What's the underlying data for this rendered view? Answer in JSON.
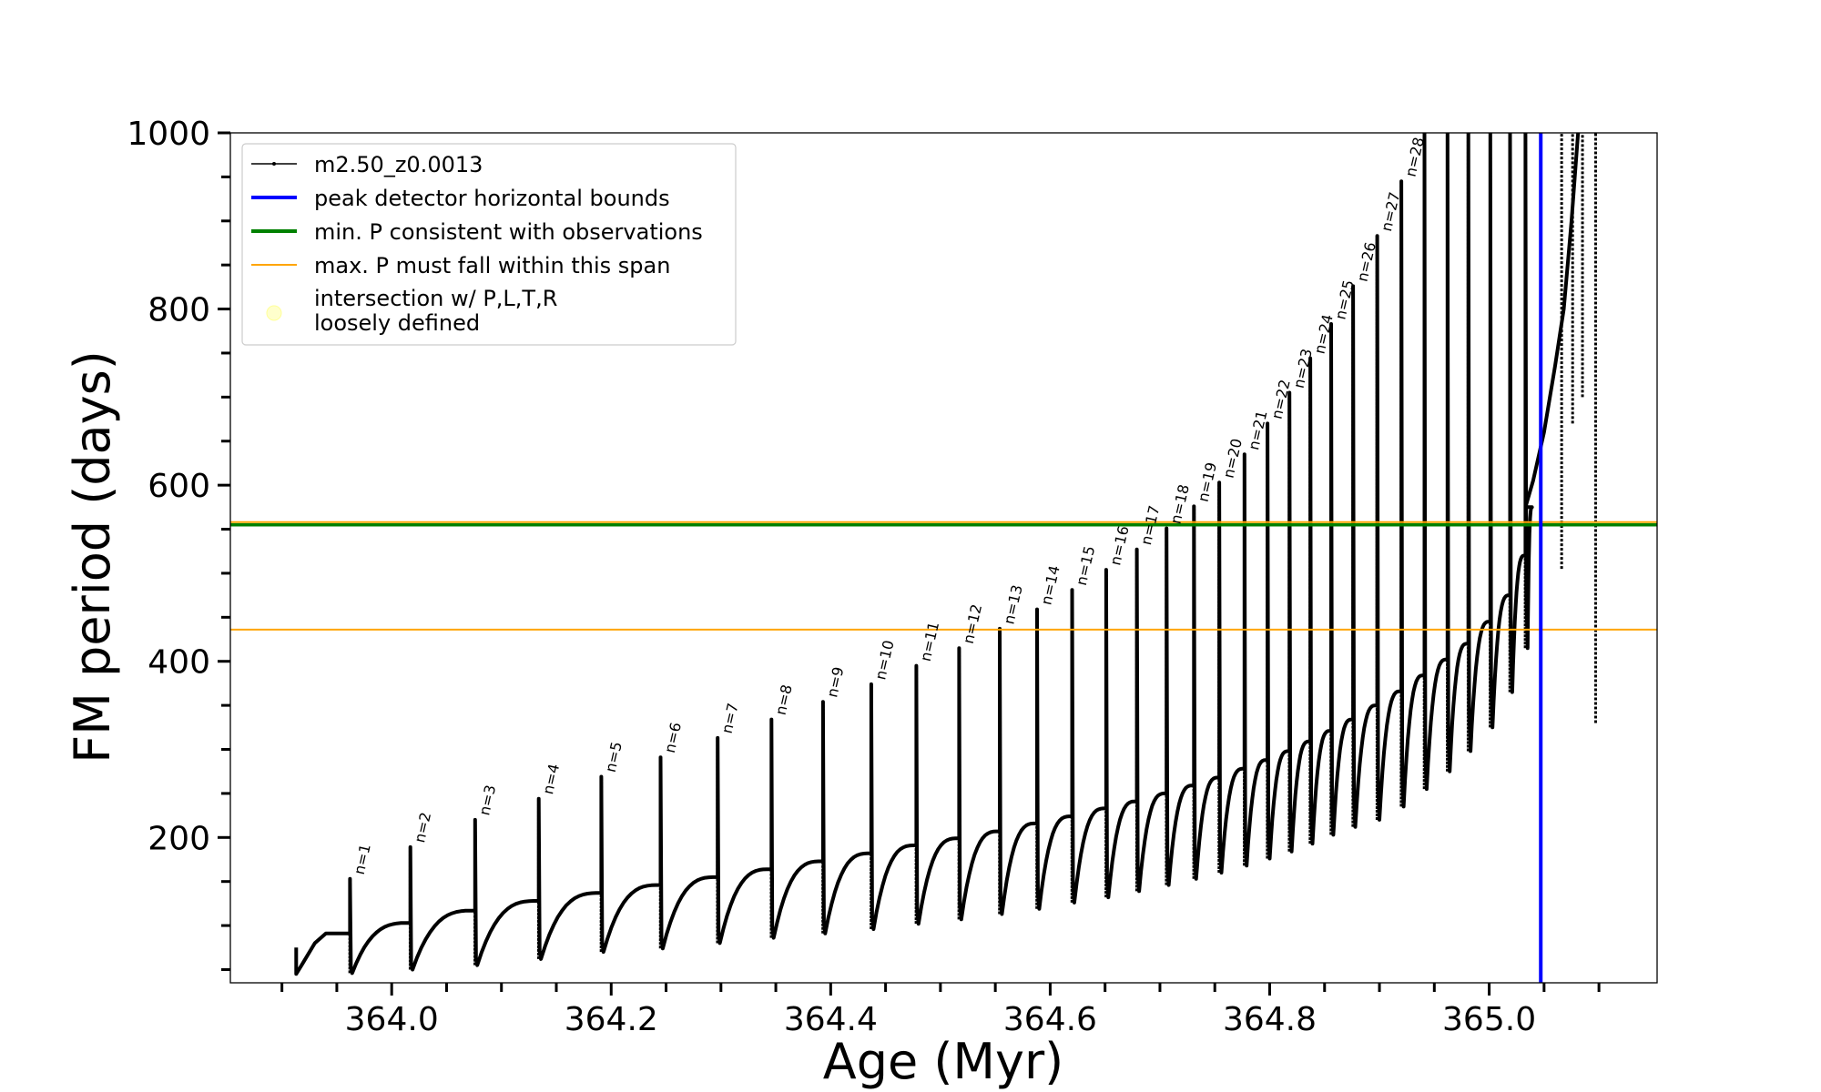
{
  "chart_data": {
    "type": "line",
    "title": "",
    "xlabel": "Age (Myr)",
    "ylabel": "FM period (days)",
    "xlim": [
      363.853,
      365.153
    ],
    "ylim": [
      35,
      1000
    ],
    "xticks": [
      364.0,
      364.2,
      364.4,
      364.6,
      364.8,
      365.0
    ],
    "xtick_labels": [
      "364.0",
      "364.2",
      "364.4",
      "364.6",
      "364.8",
      "365.0"
    ],
    "yticks": [
      200,
      400,
      600,
      800,
      1000
    ],
    "ytick_labels": [
      "200",
      "400",
      "600",
      "800",
      "1000"
    ],
    "grid": false,
    "legend_position": "top-left",
    "legend": [
      {
        "label": "m2.50_z0.0013",
        "color": "#000000",
        "style": "line-marker"
      },
      {
        "label": "peak detector horizontal bounds",
        "color": "#0000ff",
        "style": "line"
      },
      {
        "label": "min. P consistent with observations",
        "color": "#008000",
        "style": "line"
      },
      {
        "label": "max. P must fall within this span",
        "color": "#ffa500",
        "style": "line"
      },
      {
        "label": "intersection w/ P,L,T,R\nloosely defined",
        "color": "#ffffcc",
        "style": "marker"
      }
    ],
    "reference_lines": {
      "peak_detector_x": 365.047,
      "min_period": 555,
      "max_period_span": [
        436,
        558
      ]
    },
    "series": [
      {
        "name": "m2.50_z0.0013",
        "color": "#000000",
        "pulses": [
          {
            "n": "n=1",
            "age": 363.962,
            "peak": 153,
            "min": 46,
            "pre": 91
          },
          {
            "n": "n=2",
            "age": 364.017,
            "peak": 189,
            "min": 50,
            "pre": 103
          },
          {
            "n": "n=3",
            "age": 364.076,
            "peak": 220,
            "min": 55,
            "pre": 117
          },
          {
            "n": "n=4",
            "age": 364.134,
            "peak": 244,
            "min": 62,
            "pre": 128
          },
          {
            "n": "n=5",
            "age": 364.191,
            "peak": 269,
            "min": 70,
            "pre": 137
          },
          {
            "n": "n=6",
            "age": 364.245,
            "peak": 291,
            "min": 74,
            "pre": 146
          },
          {
            "n": "n=7",
            "age": 364.297,
            "peak": 313,
            "min": 80,
            "pre": 155
          },
          {
            "n": "n=8",
            "age": 364.346,
            "peak": 334,
            "min": 86,
            "pre": 164
          },
          {
            "n": "n=9",
            "age": 364.393,
            "peak": 354,
            "min": 91,
            "pre": 173
          },
          {
            "n": "n=10",
            "age": 364.437,
            "peak": 374,
            "min": 96,
            "pre": 182
          },
          {
            "n": "n=11",
            "age": 364.478,
            "peak": 395,
            "min": 102,
            "pre": 191
          },
          {
            "n": "n=12",
            "age": 364.517,
            "peak": 415,
            "min": 107,
            "pre": 199
          },
          {
            "n": "n=13",
            "age": 364.554,
            "peak": 437,
            "min": 113,
            "pre": 207
          },
          {
            "n": "n=14",
            "age": 364.588,
            "peak": 459,
            "min": 119,
            "pre": 216
          },
          {
            "n": "n=15",
            "age": 364.62,
            "peak": 481,
            "min": 126,
            "pre": 224
          },
          {
            "n": "n=16",
            "age": 364.651,
            "peak": 504,
            "min": 132,
            "pre": 233
          },
          {
            "n": "n=17",
            "age": 364.679,
            "peak": 527,
            "min": 139,
            "pre": 241
          },
          {
            "n": "n=18",
            "age": 364.706,
            "peak": 551,
            "min": 146,
            "pre": 250
          },
          {
            "n": "n=19",
            "age": 364.731,
            "peak": 576,
            "min": 153,
            "pre": 259
          },
          {
            "n": "n=20",
            "age": 364.754,
            "peak": 603,
            "min": 160,
            "pre": 268
          },
          {
            "n": "n=21",
            "age": 364.777,
            "peak": 635,
            "min": 168,
            "pre": 278
          },
          {
            "n": "n=22",
            "age": 364.798,
            "peak": 670,
            "min": 176,
            "pre": 288
          },
          {
            "n": "n=23",
            "age": 364.818,
            "peak": 705,
            "min": 184,
            "pre": 298
          },
          {
            "n": "n=24",
            "age": 364.837,
            "peak": 744,
            "min": 193,
            "pre": 309
          },
          {
            "n": "n=25",
            "age": 364.856,
            "peak": 783,
            "min": 203,
            "pre": 321
          },
          {
            "n": "n=26",
            "age": 364.876,
            "peak": 826,
            "min": 212,
            "pre": 334
          },
          {
            "n": "n=27",
            "age": 364.898,
            "peak": 883,
            "min": 220,
            "pre": 350
          },
          {
            "n": "n=28",
            "age": 364.92,
            "peak": 945,
            "min": 235,
            "pre": 366
          },
          {
            "n": "",
            "age": 364.941,
            "peak": 1000,
            "min": 255,
            "pre": 384
          },
          {
            "n": "",
            "age": 364.962,
            "peak": 1000,
            "min": 275,
            "pre": 402
          },
          {
            "n": "",
            "age": 364.981,
            "peak": 1000,
            "min": 298,
            "pre": 420
          },
          {
            "n": "",
            "age": 365.001,
            "peak": 1000,
            "min": 325,
            "pre": 445
          },
          {
            "n": "",
            "age": 365.019,
            "peak": 1000,
            "min": 365,
            "pre": 475
          },
          {
            "n": "",
            "age": 365.033,
            "peak": 1000,
            "min": 415,
            "pre": 520
          }
        ],
        "final_segment": [
          {
            "age": 365.033,
            "period": 575
          },
          {
            "age": 365.04,
            "period": 605
          },
          {
            "age": 365.05,
            "period": 660
          },
          {
            "age": 365.06,
            "period": 735
          },
          {
            "age": 365.068,
            "period": 800
          },
          {
            "age": 365.075,
            "period": 900
          },
          {
            "age": 365.081,
            "period": 1000
          }
        ],
        "late_spikes": [
          {
            "age": 365.066,
            "from": 505,
            "to": 1000
          },
          {
            "age": 365.076,
            "from": 670,
            "to": 1000
          },
          {
            "age": 365.085,
            "from": 700,
            "to": 1000
          },
          {
            "age": 365.097,
            "from": 330,
            "to": 1000
          }
        ]
      }
    ]
  }
}
